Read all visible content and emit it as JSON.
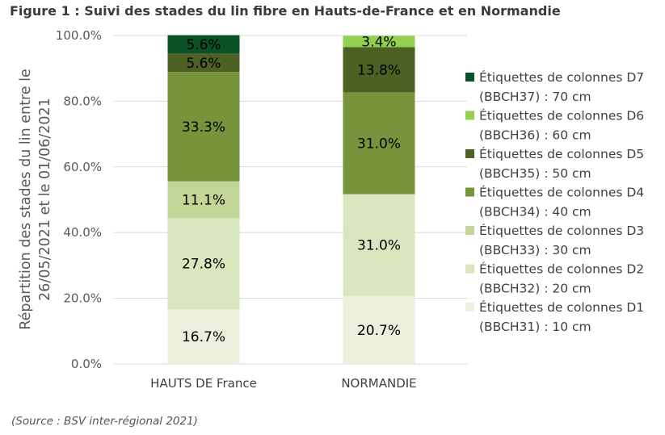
{
  "figure_title": "Figure 1 : Suivi des stades du lin fibre en Hauts-de-France et en Normandie",
  "source_note": "(Source : BSV inter-régional 2021)",
  "chart_data": {
    "type": "bar",
    "stacked": true,
    "normalized_percent": true,
    "categories": [
      "HAUTS DE France",
      "NORMANDIE"
    ],
    "ylabel_lines": [
      "Répartition des stades du lin entre le",
      "26/05/2021 et le 01/06/2021"
    ],
    "xlabel": "",
    "ylim": [
      0,
      100
    ],
    "yticks": [
      "0.0%",
      "20.0%",
      "40.0%",
      "60.0%",
      "80.0%",
      "100.0%"
    ],
    "grid": true,
    "legend_position": "right",
    "series": [
      {
        "name": "Étiquettes de colonnes D1 (BBCH31) : 10 cm",
        "legend_lines": [
          "Étiquettes de colonnes D1",
          "(BBCH31) : 10 cm"
        ],
        "color": "#ebf0dc",
        "values": [
          16.7,
          20.7
        ],
        "labels": [
          "16.7%",
          "20.7%"
        ]
      },
      {
        "name": "Étiquettes de colonnes D2 (BBCH32) : 20 cm",
        "legend_lines": [
          "Étiquettes de colonnes D2",
          "(BBCH32) : 20 cm"
        ],
        "color": "#d9e6be",
        "values": [
          27.8,
          31.0
        ],
        "labels": [
          "27.8%",
          "31.0%"
        ]
      },
      {
        "name": "Étiquettes de colonnes D3 (BBCH33) : 30 cm",
        "legend_lines": [
          "Étiquettes de colonnes D3",
          "(BBCH33) : 30 cm"
        ],
        "color": "#c3d697",
        "values": [
          11.1,
          0
        ],
        "labels": [
          "11.1%",
          ""
        ]
      },
      {
        "name": "Étiquettes de colonnes D4 (BBCH34) : 40 cm",
        "legend_lines": [
          "Étiquettes de colonnes D4",
          "(BBCH34) : 40 cm"
        ],
        "color": "#76943c",
        "values": [
          33.3,
          31.0
        ],
        "labels": [
          "33.3%",
          "31.0%"
        ]
      },
      {
        "name": "Étiquettes de colonnes D5 (BBCH35) : 50 cm",
        "legend_lines": [
          "Étiquettes de colonnes D5",
          "(BBCH35) : 50 cm"
        ],
        "color": "#4e6124",
        "values": [
          5.6,
          13.8
        ],
        "labels": [
          "5.6%",
          "13.8%"
        ]
      },
      {
        "name": "Étiquettes de colonnes D6 (BBCH36) : 60 cm",
        "legend_lines": [
          "Étiquettes de colonnes D6",
          "(BBCH36) : 60 cm"
        ],
        "color": "#92d050",
        "values": [
          0,
          3.4
        ],
        "labels": [
          "",
          "3.4%"
        ]
      },
      {
        "name": "Étiquettes de colonnes D7 (BBCH37) : 70 cm",
        "legend_lines": [
          "Étiquettes de colonnes D7",
          "(BBCH37) : 70 cm"
        ],
        "color": "#0b5128",
        "values": [
          5.6,
          0
        ],
        "labels": [
          "5.6%",
          ""
        ]
      }
    ]
  }
}
